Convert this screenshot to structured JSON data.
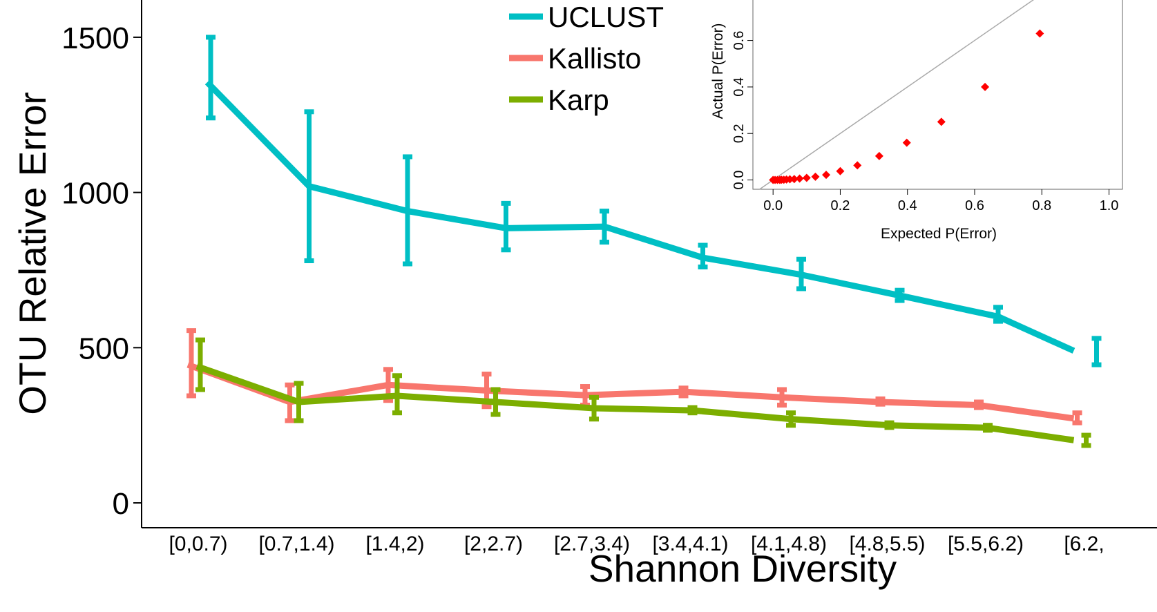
{
  "chart_data": [
    {
      "type": "line",
      "title": "",
      "xlabel": "Shannon Diversity",
      "ylabel": "OTU Relative Error",
      "ylim": [
        -80,
        1620
      ],
      "yticks": [
        0,
        500,
        1000,
        1500
      ],
      "ytick_labels": [
        "0",
        "500",
        "1000",
        "1500"
      ],
      "categories": [
        "[0,0.7)",
        "[0.7,1.4)",
        "[1.4,2)",
        "[2,2.7)",
        "[2.7,3.4)",
        "[3.4,4.1)",
        "[4.1,4.8)",
        "[4.8,5.5)",
        "[5.5,6.2)",
        "[6.2,"
      ],
      "legend_position": "top-center",
      "series": [
        {
          "name": "UCLUST",
          "color": "#00BFC4",
          "values": [
            1355,
            1020,
            940,
            885,
            890,
            790,
            735,
            668,
            600,
            490
          ],
          "err_low": [
            1240,
            780,
            770,
            815,
            840,
            760,
            690,
            652,
            585,
            445
          ],
          "err_high": [
            1500,
            1260,
            1115,
            965,
            940,
            830,
            785,
            685,
            630,
            530
          ]
        },
        {
          "name": "Kallisto",
          "color": "#F8766D",
          "values": [
            445,
            325,
            380,
            362,
            347,
            358,
            340,
            325,
            315,
            272
          ],
          "err_low": [
            345,
            265,
            330,
            310,
            315,
            345,
            315,
            318,
            307,
            258
          ],
          "err_high": [
            555,
            380,
            430,
            415,
            375,
            370,
            365,
            335,
            325,
            290
          ]
        },
        {
          "name": "Karp",
          "color": "#7CAE00",
          "values": [
            440,
            325,
            345,
            325,
            305,
            298,
            270,
            250,
            242,
            202
          ],
          "err_low": [
            365,
            265,
            290,
            285,
            270,
            290,
            250,
            243,
            234,
            185
          ],
          "err_high": [
            525,
            385,
            410,
            365,
            340,
            307,
            290,
            258,
            250,
            218
          ]
        }
      ]
    },
    {
      "type": "scatter",
      "title": "",
      "xlabel": "Expected P(Error)",
      "ylabel": "Actual P(Error)",
      "xlim": [
        -0.06,
        1.04
      ],
      "ylim": [
        -0.04,
        0.78
      ],
      "xticks": [
        0.0,
        0.2,
        0.4,
        0.6,
        0.8,
        1.0
      ],
      "xtick_labels": [
        "0.0",
        "0.2",
        "0.4",
        "0.6",
        "0.8",
        "1.0"
      ],
      "yticks": [
        0.0,
        0.2,
        0.4,
        0.6
      ],
      "ytick_labels": [
        "0.0",
        "0.2",
        "0.4",
        "0.6"
      ],
      "reference_line": "y = x",
      "point_color": "#FF0000",
      "points": [
        {
          "x": 0.0,
          "y": 0.0
        },
        {
          "x": 0.006,
          "y": 0.0
        },
        {
          "x": 0.013,
          "y": 0.0
        },
        {
          "x": 0.02,
          "y": 0.0
        },
        {
          "x": 0.025,
          "y": 0.001
        },
        {
          "x": 0.032,
          "y": 0.001
        },
        {
          "x": 0.04,
          "y": 0.002
        },
        {
          "x": 0.05,
          "y": 0.003
        },
        {
          "x": 0.063,
          "y": 0.004
        },
        {
          "x": 0.079,
          "y": 0.006
        },
        {
          "x": 0.1,
          "y": 0.009
        },
        {
          "x": 0.126,
          "y": 0.014
        },
        {
          "x": 0.158,
          "y": 0.022
        },
        {
          "x": 0.2,
          "y": 0.038
        },
        {
          "x": 0.251,
          "y": 0.063
        },
        {
          "x": 0.316,
          "y": 0.103
        },
        {
          "x": 0.398,
          "y": 0.16
        },
        {
          "x": 0.501,
          "y": 0.25
        },
        {
          "x": 0.631,
          "y": 0.4
        },
        {
          "x": 0.794,
          "y": 0.63
        }
      ]
    }
  ]
}
